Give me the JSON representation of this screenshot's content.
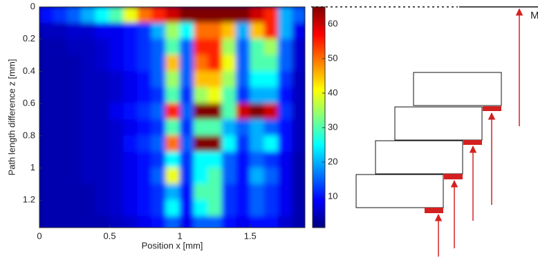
{
  "chart_data": {
    "type": "heatmap",
    "x_label": "Position x [mm]",
    "y_label": "Path length difference z [mm]",
    "xlim": [
      0,
      1.89
    ],
    "ylim": [
      0,
      1.37
    ],
    "xticks": [
      0,
      0.5,
      1,
      1.5
    ],
    "yticks": [
      0,
      0.2,
      0.4,
      0.6,
      0.8,
      1,
      1.2
    ],
    "clim": [
      1,
      65
    ],
    "cticks": [
      10,
      20,
      30,
      40,
      50,
      60
    ],
    "colormap": "jet",
    "x": [
      0.05,
      0.15,
      0.25,
      0.35,
      0.45,
      0.55,
      0.65,
      0.75,
      0.85,
      0.95,
      1.05,
      1.15,
      1.25,
      1.35,
      1.45,
      1.55,
      1.65,
      1.75,
      1.85
    ],
    "y": [
      0.05,
      0.15,
      0.25,
      0.35,
      0.45,
      0.55,
      0.65,
      0.75,
      0.85,
      0.95,
      1.05,
      1.15,
      1.25,
      1.35
    ],
    "values": [
      [
        10,
        12,
        15,
        20,
        25,
        30,
        40,
        50,
        55,
        60,
        65,
        65,
        65,
        65,
        65,
        60,
        55,
        20,
        15
      ],
      [
        5,
        5,
        6,
        6,
        8,
        8,
        10,
        12,
        20,
        35,
        25,
        50,
        50,
        45,
        20,
        45,
        55,
        20,
        8
      ],
      [
        4,
        4,
        5,
        5,
        6,
        8,
        10,
        12,
        15,
        30,
        15,
        55,
        55,
        35,
        15,
        30,
        35,
        15,
        6
      ],
      [
        4,
        4,
        4,
        5,
        6,
        8,
        10,
        12,
        15,
        45,
        15,
        50,
        55,
        40,
        15,
        30,
        30,
        15,
        6
      ],
      [
        4,
        4,
        4,
        5,
        5,
        6,
        8,
        10,
        15,
        35,
        15,
        45,
        45,
        35,
        15,
        25,
        25,
        12,
        5
      ],
      [
        4,
        4,
        4,
        5,
        5,
        6,
        8,
        10,
        12,
        30,
        12,
        35,
        40,
        30,
        12,
        20,
        20,
        10,
        5
      ],
      [
        4,
        4,
        4,
        5,
        5,
        8,
        10,
        12,
        15,
        55,
        15,
        65,
        65,
        30,
        60,
        65,
        60,
        12,
        5
      ],
      [
        4,
        4,
        4,
        5,
        5,
        6,
        8,
        10,
        12,
        30,
        12,
        30,
        30,
        20,
        15,
        20,
        15,
        10,
        5
      ],
      [
        4,
        4,
        4,
        5,
        5,
        6,
        10,
        12,
        15,
        50,
        15,
        65,
        65,
        25,
        12,
        20,
        25,
        10,
        5
      ],
      [
        4,
        4,
        4,
        5,
        5,
        6,
        8,
        10,
        12,
        25,
        12,
        25,
        25,
        15,
        10,
        15,
        12,
        8,
        4
      ],
      [
        4,
        4,
        4,
        5,
        5,
        6,
        8,
        10,
        15,
        40,
        12,
        25,
        30,
        15,
        10,
        20,
        15,
        8,
        4
      ],
      [
        4,
        4,
        4,
        4,
        5,
        6,
        8,
        10,
        12,
        20,
        10,
        30,
        30,
        12,
        10,
        15,
        12,
        8,
        4
      ],
      [
        4,
        4,
        4,
        4,
        5,
        6,
        8,
        10,
        12,
        25,
        10,
        25,
        30,
        12,
        10,
        15,
        12,
        8,
        4
      ],
      [
        4,
        4,
        4,
        4,
        4,
        5,
        6,
        8,
        10,
        15,
        8,
        15,
        15,
        10,
        8,
        10,
        10,
        6,
        4
      ]
    ]
  },
  "diagram": {
    "label": "M"
  }
}
